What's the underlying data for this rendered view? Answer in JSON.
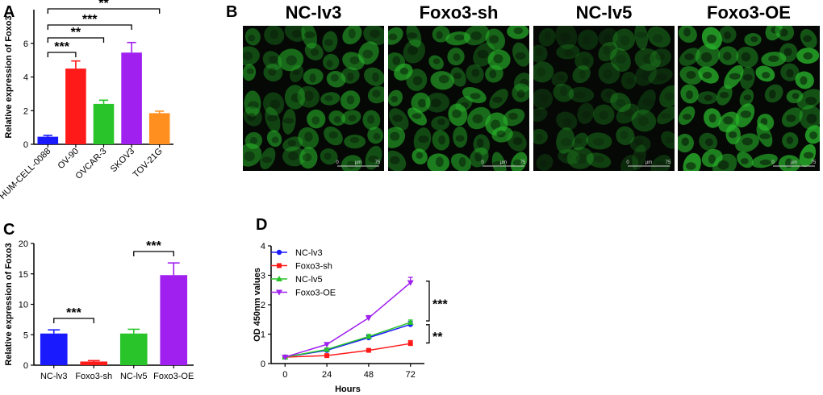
{
  "panels": {
    "A": "A",
    "B": "B",
    "C": "C",
    "D": "D"
  },
  "colors": {
    "blue": "#1a1aff",
    "red": "#ff1a1a",
    "green": "#29c42a",
    "purple": "#a020f0",
    "orange": "#ff9020",
    "cell": "#29b82b"
  },
  "chart_data": [
    {
      "id": "A",
      "type": "bar",
      "ylabel": "Relative expression of Foxo3",
      "categories": [
        "HUM-CELL-0088",
        "OV-90",
        "OVCAR-3",
        "SKOV3",
        "TOV-21G"
      ],
      "values": [
        0.45,
        4.5,
        2.4,
        5.45,
        1.85
      ],
      "errors": [
        0.08,
        0.45,
        0.22,
        0.6,
        0.12
      ],
      "ylim": [
        0,
        8
      ],
      "yticks": [
        0,
        2,
        4,
        6
      ],
      "significance": [
        {
          "from": 0,
          "to": 1,
          "label": "***"
        },
        {
          "from": 0,
          "to": 2,
          "label": "**"
        },
        {
          "from": 0,
          "to": 3,
          "label": "***"
        },
        {
          "from": 0,
          "to": 4,
          "label": "**"
        }
      ]
    },
    {
      "id": "C",
      "type": "bar",
      "ylabel": "Relative expression of Foxo3",
      "categories": [
        "NC-lv3",
        "Foxo3-sh",
        "NC-lv5",
        "Foxo3-OE"
      ],
      "values": [
        5.2,
        0.6,
        5.2,
        14.8
      ],
      "errors": [
        0.6,
        0.15,
        0.7,
        2.0
      ],
      "ylim": [
        0,
        20
      ],
      "yticks": [
        0,
        5,
        10,
        15,
        20
      ],
      "significance": [
        {
          "from": 0,
          "to": 1,
          "label": "***"
        },
        {
          "from": 2,
          "to": 3,
          "label": "***"
        }
      ]
    },
    {
      "id": "D",
      "type": "line",
      "xlabel": "Hours",
      "ylabel": "OD 450nm values",
      "x": [
        0,
        24,
        48,
        72
      ],
      "xlim": [
        -8,
        80
      ],
      "ylim": [
        0,
        4
      ],
      "xticks": [
        0,
        24,
        48,
        72
      ],
      "yticks": [
        0,
        1,
        2,
        3,
        4
      ],
      "series": [
        {
          "name": "NC-lv3",
          "values": [
            0.22,
            0.45,
            0.88,
            1.33
          ],
          "errors": [
            0.02,
            0.05,
            0.07,
            0.1
          ]
        },
        {
          "name": "Foxo3-sh",
          "values": [
            0.22,
            0.27,
            0.45,
            0.68
          ],
          "errors": [
            0.02,
            0.03,
            0.05,
            0.1
          ]
        },
        {
          "name": "NC-lv5",
          "values": [
            0.22,
            0.48,
            0.92,
            1.4
          ],
          "errors": [
            0.02,
            0.05,
            0.07,
            0.08
          ]
        },
        {
          "name": "Foxo3-OE",
          "values": [
            0.22,
            0.65,
            1.55,
            2.75
          ],
          "errors": [
            0.02,
            0.05,
            0.08,
            0.18
          ]
        }
      ],
      "significance": [
        {
          "label": "***",
          "between": [
            "Foxo3-OE",
            "NC-lv5"
          ]
        },
        {
          "label": "**",
          "between": [
            "NC-lv3",
            "Foxo3-sh"
          ]
        }
      ]
    }
  ],
  "micrographs": [
    {
      "title": "NC-lv3",
      "intensity": 0.75,
      "scale": {
        "zero": "0",
        "unit": "µm",
        "end": "75"
      }
    },
    {
      "title": "Foxo3-sh",
      "intensity": 0.85,
      "scale": {
        "zero": "0",
        "unit": "µm",
        "end": "75"
      }
    },
    {
      "title": "NC-lv5",
      "intensity": 0.45,
      "scale": {
        "zero": "0",
        "unit": "µm",
        "end": "75"
      }
    },
    {
      "title": "Foxo3-OE",
      "intensity": 1.0,
      "scale": {
        "zero": "0",
        "unit": "µm",
        "end": "75"
      }
    }
  ]
}
